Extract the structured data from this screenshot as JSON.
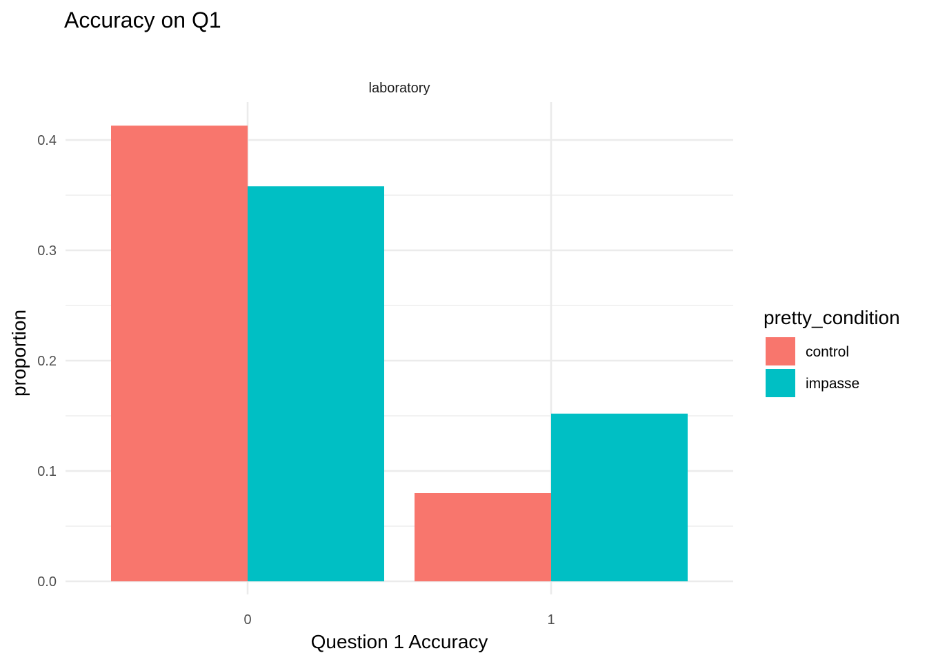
{
  "chart_data": {
    "type": "bar",
    "title": "Accuracy on Q1",
    "facet": "laboratory",
    "xlabel": "Question 1 Accuracy",
    "ylabel": "proportion",
    "categories": [
      "0",
      "1"
    ],
    "ylim": [
      0,
      0.435
    ],
    "yticks": [
      0.0,
      0.1,
      0.2,
      0.3,
      0.4
    ],
    "ytick_labels": [
      "0.0",
      "0.1",
      "0.2",
      "0.3",
      "0.4"
    ],
    "grid": true,
    "legend": {
      "title": "pretty_condition",
      "position": "right"
    },
    "series": [
      {
        "name": "control",
        "color": "#F8766D",
        "values": [
          0.413,
          0.08
        ]
      },
      {
        "name": "impasse",
        "color": "#00BFC4",
        "values": [
          0.358,
          0.152
        ]
      }
    ]
  }
}
